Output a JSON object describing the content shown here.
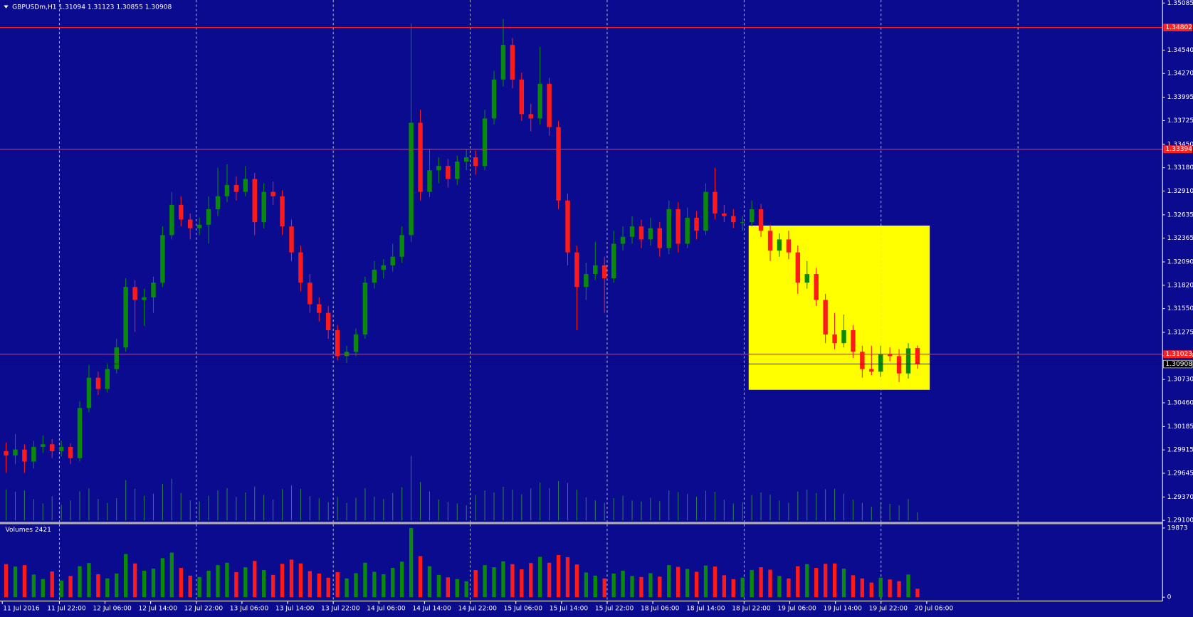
{
  "chart_data": {
    "type": "candlestick",
    "symbol": "GBPUSDm,H1",
    "background": "#0b0b8f",
    "bull_color": "#0a8a0a",
    "bear_color": "#ff1a1a",
    "level_color": "#ff2020",
    "box_color": "#ffff00",
    "tickvol_color": "#2e7d4a",
    "ylim": [
      1.29082,
      1.3512
    ],
    "yticks": [
      1.35085,
      {
        "value": 1.3454,
        "label": "1.34540"
      },
      {
        "value": 1.3427,
        "label": "1.34270"
      },
      1.33995,
      1.33725,
      {
        "value": 1.3345,
        "label": "1.33450"
      },
      {
        "value": 1.3318,
        "label": "1.33180"
      },
      {
        "value": 1.3291,
        "label": "1.32910"
      },
      1.32635,
      1.32365,
      {
        "value": 1.3209,
        "label": "1.32090"
      },
      {
        "value": 1.3182,
        "label": "1.31820"
      },
      {
        "value": 1.3155,
        "label": "1.31550"
      },
      1.31275,
      1.31005,
      {
        "value": 1.3073,
        "label": "1.30730"
      },
      {
        "value": 1.3046,
        "label": "1.30460"
      },
      1.30185,
      1.29915,
      1.29645,
      {
        "value": 1.2937,
        "label": "1.29370"
      },
      {
        "value": 1.291,
        "label": "1.29100"
      }
    ],
    "levels": [
      1.34802,
      1.33394,
      1.31023
    ],
    "box": {
      "top": 1.3251,
      "bottom": 1.3061
    },
    "categories": [
      "11 Jul 2016",
      "11 Jul 22:00",
      "12 Jul 06:00",
      "12 Jul 14:00",
      "12 Jul 22:00",
      "13 Jul 06:00",
      "13 Jul 14:00",
      "13 Jul 22:00",
      "14 Jul 06:00",
      "14 Jul 14:00",
      "14 Jul 22:00",
      "15 Jul 06:00",
      "15 Jul 14:00",
      "15 Jul 22:00",
      "18 Jul 06:00",
      "18 Jul 14:00",
      "18 Jul 22:00",
      "19 Jul 06:00",
      "19 Jul 14:00",
      "19 Jul 22:00",
      "20 Jul 06:00"
    ],
    "candles": [
      [
        1.299,
        1.3,
        1.2965,
        1.2985
      ],
      [
        1.2985,
        1.301,
        1.2975,
        1.2992
      ],
      [
        1.2992,
        1.2998,
        1.2965,
        1.2978
      ],
      [
        1.2978,
        1.3002,
        1.297,
        1.2995
      ],
      [
        1.2995,
        1.3008,
        1.2988,
        1.2998
      ],
      [
        1.2998,
        1.3004,
        1.2982,
        1.299
      ],
      [
        1.299,
        1.3002,
        1.2984,
        1.2995
      ],
      [
        1.2995,
        1.2999,
        1.2975,
        1.2982
      ],
      [
        1.2982,
        1.3048,
        1.2978,
        1.304
      ],
      [
        1.304,
        1.309,
        1.3035,
        1.3075
      ],
      [
        1.3075,
        1.3082,
        1.3055,
        1.3062
      ],
      [
        1.3062,
        1.3092,
        1.3058,
        1.3085
      ],
      [
        1.3085,
        1.312,
        1.308,
        1.311
      ],
      [
        1.311,
        1.319,
        1.3105,
        1.318
      ],
      [
        1.318,
        1.3188,
        1.3128,
        1.3165
      ],
      [
        1.3165,
        1.3178,
        1.3135,
        1.3168
      ],
      [
        1.3168,
        1.3192,
        1.315,
        1.3185
      ],
      [
        1.3185,
        1.325,
        1.318,
        1.324
      ],
      [
        1.324,
        1.329,
        1.3235,
        1.3275
      ],
      [
        1.3275,
        1.3285,
        1.325,
        1.3258
      ],
      [
        1.3258,
        1.3265,
        1.3235,
        1.3248
      ],
      [
        1.3248,
        1.326,
        1.324,
        1.3252
      ],
      [
        1.3252,
        1.3285,
        1.323,
        1.327
      ],
      [
        1.327,
        1.3318,
        1.3262,
        1.3285
      ],
      [
        1.3285,
        1.3322,
        1.3278,
        1.3298
      ],
      [
        1.3298,
        1.3308,
        1.328,
        1.329
      ],
      [
        1.329,
        1.332,
        1.3285,
        1.3305
      ],
      [
        1.3305,
        1.3312,
        1.324,
        1.3255
      ],
      [
        1.3255,
        1.33,
        1.3248,
        1.329
      ],
      [
        1.329,
        1.3302,
        1.3275,
        1.3285
      ],
      [
        1.3285,
        1.3292,
        1.324,
        1.325
      ],
      [
        1.325,
        1.3258,
        1.321,
        1.322
      ],
      [
        1.322,
        1.3228,
        1.3175,
        1.3185
      ],
      [
        1.3185,
        1.3195,
        1.315,
        1.316
      ],
      [
        1.316,
        1.3168,
        1.314,
        1.315
      ],
      [
        1.315,
        1.3158,
        1.312,
        1.313
      ],
      [
        1.313,
        1.3136,
        1.3095,
        1.31
      ],
      [
        1.31,
        1.3112,
        1.3092,
        1.3105
      ],
      [
        1.3105,
        1.3132,
        1.31,
        1.3125
      ],
      [
        1.3125,
        1.3192,
        1.312,
        1.3185
      ],
      [
        1.3185,
        1.321,
        1.3178,
        1.32
      ],
      [
        1.32,
        1.3212,
        1.319,
        1.3205
      ],
      [
        1.3205,
        1.323,
        1.3198,
        1.3215
      ],
      [
        1.3215,
        1.325,
        1.3208,
        1.324
      ],
      [
        1.324,
        1.3485,
        1.3232,
        1.337
      ],
      [
        1.337,
        1.3385,
        1.328,
        1.329
      ],
      [
        1.329,
        1.334,
        1.3284,
        1.3315
      ],
      [
        1.3315,
        1.333,
        1.33,
        1.332
      ],
      [
        1.332,
        1.3328,
        1.3295,
        1.3305
      ],
      [
        1.3305,
        1.3332,
        1.3298,
        1.3325
      ],
      [
        1.3325,
        1.334,
        1.3315,
        1.333
      ],
      [
        1.333,
        1.3338,
        1.331,
        1.332
      ],
      [
        1.332,
        1.3385,
        1.3315,
        1.3375
      ],
      [
        1.3375,
        1.343,
        1.3368,
        1.342
      ],
      [
        1.342,
        1.349,
        1.3412,
        1.346
      ],
      [
        1.346,
        1.3468,
        1.341,
        1.342
      ],
      [
        1.342,
        1.3428,
        1.3372,
        1.338
      ],
      [
        1.338,
        1.3392,
        1.336,
        1.3375
      ],
      [
        1.3375,
        1.3458,
        1.3368,
        1.3415
      ],
      [
        1.3415,
        1.3422,
        1.3355,
        1.3365
      ],
      [
        1.3365,
        1.3372,
        1.327,
        1.328
      ],
      [
        1.328,
        1.3288,
        1.3205,
        1.322
      ],
      [
        1.322,
        1.3228,
        1.313,
        1.318
      ],
      [
        1.318,
        1.3208,
        1.3165,
        1.3195
      ],
      [
        1.3195,
        1.3232,
        1.3188,
        1.3205
      ],
      [
        1.3205,
        1.3215,
        1.315,
        1.319
      ],
      [
        1.319,
        1.3245,
        1.3185,
        1.323
      ],
      [
        1.323,
        1.325,
        1.3222,
        1.3238
      ],
      [
        1.3238,
        1.3262,
        1.323,
        1.325
      ],
      [
        1.325,
        1.3258,
        1.3225,
        1.3235
      ],
      [
        1.3235,
        1.326,
        1.3228,
        1.3248
      ],
      [
        1.3248,
        1.3255,
        1.3215,
        1.3225
      ],
      [
        1.3225,
        1.328,
        1.3218,
        1.327
      ],
      [
        1.327,
        1.3278,
        1.322,
        1.323
      ],
      [
        1.323,
        1.3272,
        1.3225,
        1.326
      ],
      [
        1.326,
        1.3268,
        1.3235,
        1.3245
      ],
      [
        1.3245,
        1.33,
        1.324,
        1.329
      ],
      [
        1.329,
        1.3318,
        1.3258,
        1.3265
      ],
      [
        1.3265,
        1.3275,
        1.3255,
        1.3262
      ],
      [
        1.3262,
        1.327,
        1.3248,
        1.3255
      ],
      [
        1.3255,
        1.3262,
        1.3245,
        1.3255
      ],
      [
        1.3255,
        1.328,
        1.325,
        1.327
      ],
      [
        1.327,
        1.3276,
        1.3238,
        1.3245
      ],
      [
        1.3245,
        1.3252,
        1.321,
        1.3222
      ],
      [
        1.3222,
        1.3242,
        1.3215,
        1.3235
      ],
      [
        1.3235,
        1.3245,
        1.3212,
        1.322
      ],
      [
        1.322,
        1.3228,
        1.3172,
        1.3185
      ],
      [
        1.3185,
        1.321,
        1.3178,
        1.3195
      ],
      [
        1.3195,
        1.3202,
        1.3158,
        1.3165
      ],
      [
        1.3165,
        1.3172,
        1.3115,
        1.3125
      ],
      [
        1.3125,
        1.315,
        1.3108,
        1.3115
      ],
      [
        1.3115,
        1.3148,
        1.311,
        1.313
      ],
      [
        1.313,
        1.3136,
        1.3098,
        1.3105
      ],
      [
        1.3105,
        1.3112,
        1.3075,
        1.3085
      ],
      [
        1.3085,
        1.3112,
        1.3078,
        1.3082
      ],
      [
        1.3082,
        1.3112,
        1.3076,
        1.3102
      ],
      [
        1.3102,
        1.311,
        1.3094,
        1.31
      ],
      [
        1.31,
        1.3108,
        1.307,
        1.308
      ],
      [
        1.308,
        1.3115,
        1.3074,
        1.3109
      ],
      [
        1.31094,
        1.31123,
        1.30855,
        1.30908
      ]
    ],
    "volume_title": "Volumes",
    "volume_ylim": [
      0,
      19873
    ],
    "volume_yticks": [
      19873,
      0
    ],
    "volumes": [
      9500,
      8800,
      9200,
      6500,
      5200,
      7400,
      4800,
      6100,
      8900,
      9800,
      6600,
      5400,
      6800,
      12400,
      9700,
      7600,
      8200,
      11200,
      12800,
      8400,
      6200,
      5800,
      7600,
      9200,
      9900,
      7200,
      8600,
      10400,
      7800,
      6400,
      9600,
      10800,
      9700,
      7500,
      6800,
      5600,
      7200,
      5400,
      6900,
      9900,
      7300,
      6600,
      8400,
      10200,
      19873,
      11800,
      8900,
      6400,
      5700,
      5200,
      4600,
      7800,
      9200,
      8600,
      10300,
      9500,
      8000,
      9800,
      11600,
      9900,
      12100,
      11500,
      9400,
      7100,
      6200,
      5400,
      6800,
      7600,
      6100,
      5800,
      6900,
      5900,
      9200,
      8700,
      8100,
      7300,
      9100,
      8800,
      6300,
      5200,
      5600,
      7800,
      8600,
      7900,
      6100,
      5400,
      8900,
      9500,
      8400,
      9600,
      9700,
      8200,
      6300,
      5400,
      4200,
      5600,
      5100,
      4600,
      6500,
      2421
    ]
  }
}
